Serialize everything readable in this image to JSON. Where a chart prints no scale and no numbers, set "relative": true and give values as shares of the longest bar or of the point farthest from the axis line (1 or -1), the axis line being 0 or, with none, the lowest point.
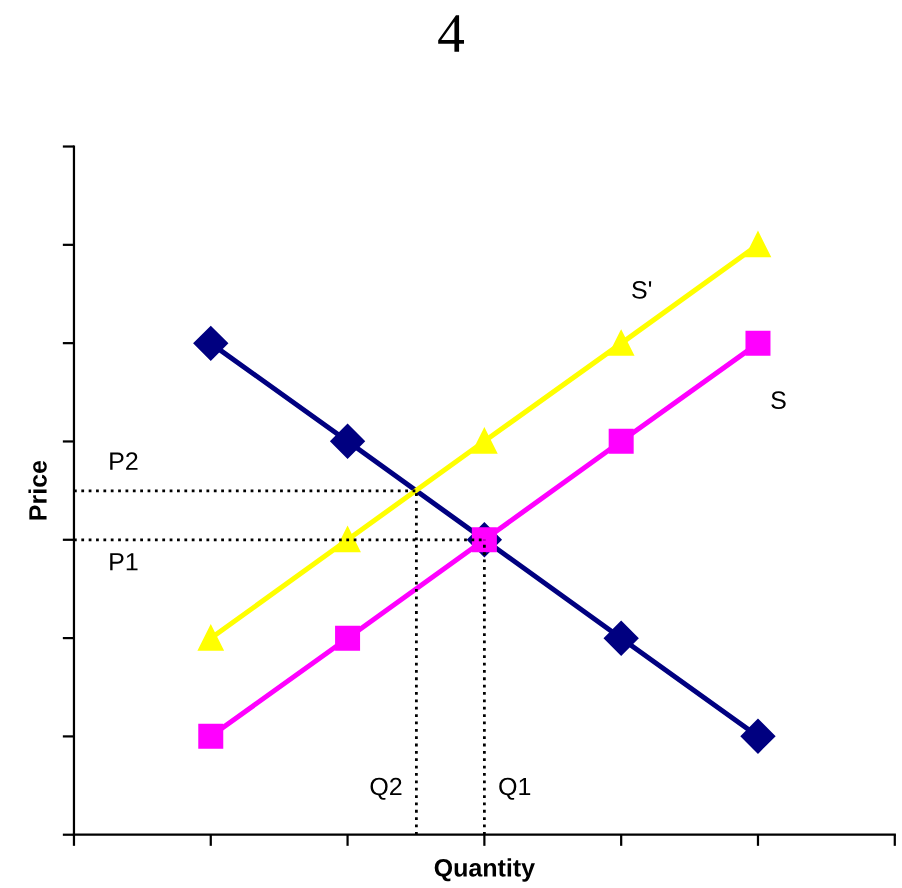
{
  "chart_data": {
    "type": "line",
    "title": "4",
    "xlabel": "Quantity",
    "ylabel": "Price",
    "relative": true,
    "categories": [
      null,
      null,
      null,
      null,
      null
    ],
    "series": [
      {
        "color": "#000080",
        "marker": "diamond",
        "values": [
          0.833,
          0.667,
          0.5,
          0.333,
          0.167
        ]
      },
      {
        "name": "S'",
        "color": "#ffff00",
        "marker": "triangle",
        "values": [
          0.333,
          0.5,
          0.667,
          0.833,
          1
        ]
      },
      {
        "name": "S",
        "color": "#ff00ff",
        "marker": "square",
        "values": [
          0.167,
          0.333,
          0.5,
          0.667,
          0.833
        ]
      }
    ],
    "ref_lines": [
      {
        "axis": "y",
        "value": 0.5,
        "label": "P1",
        "line_style": "dotted",
        "color": "#000000"
      },
      {
        "axis": "y",
        "value": 0.583,
        "label": "P2",
        "line_style": "dotted",
        "color": "#000000"
      }
    ],
    "annotations": [
      "Q1",
      "Q2"
    ],
    "grid": false,
    "legend": false
  }
}
